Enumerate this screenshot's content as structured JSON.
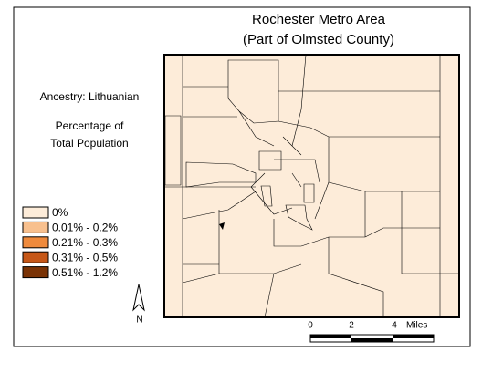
{
  "title": [
    "Rochester Metro Area",
    "(Part of Olmsted County)"
  ],
  "subtitle": "Ancestry: Lithuanian",
  "legend_title": [
    "Percentage of",
    "Total Population"
  ],
  "legend": [
    {
      "label": "0%",
      "color": "#fdecd9"
    },
    {
      "label": "0.01% - 0.2%",
      "color": "#f8c08e"
    },
    {
      "label": "0.21% - 0.3%",
      "color": "#ef8a3c"
    },
    {
      "label": "0.31% - 0.5%",
      "color": "#c65718"
    },
    {
      "label": "0.51% - 1.2%",
      "color": "#7a3305"
    }
  ],
  "scale_bar": {
    "labels": [
      "0",
      "2",
      "4"
    ],
    "unit": "Miles"
  },
  "north_label": "N"
}
